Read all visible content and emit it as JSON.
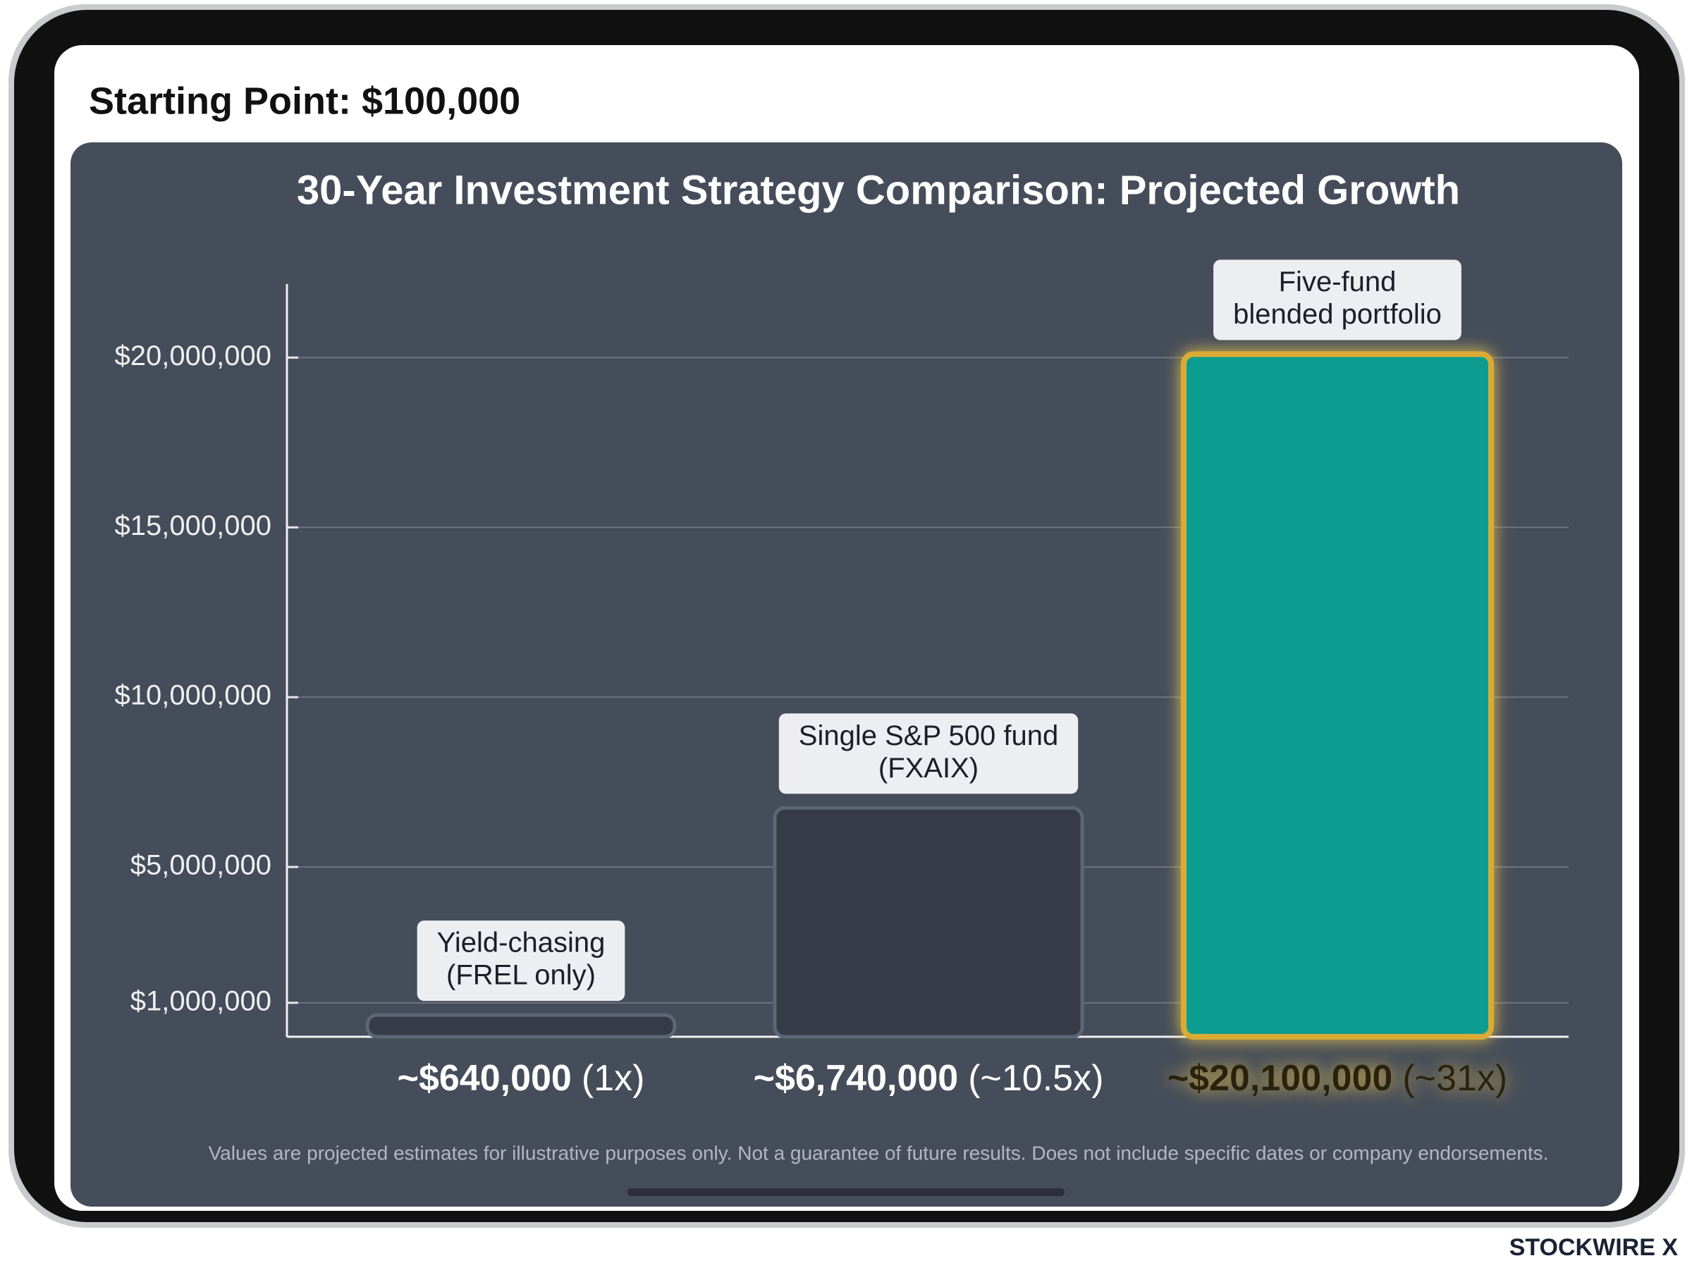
{
  "header": {
    "title": "Starting Point: $100,000"
  },
  "chart_data": {
    "type": "bar",
    "title": "30-Year Investment Strategy Comparison: Projected Growth",
    "categories": [
      [
        "Yield-chasing",
        "(FREL only)"
      ],
      [
        "Single S&P 500 fund",
        "(FXAIX)"
      ],
      [
        "Five-fund",
        "blended portfolio"
      ]
    ],
    "values": [
      640000,
      6740000,
      20100000
    ],
    "value_labels": [
      "~$640,000",
      "~$6,740,000",
      "~$20,100,000"
    ],
    "multipliers": [
      "(1x)",
      "(~10.5x)",
      "(~31x)"
    ],
    "colors": [
      "#353c48",
      "#353c48",
      "#0b9c90"
    ],
    "edge_colors": [
      "#5d6675",
      "#5d6675",
      "#d9ab35"
    ],
    "glow": [
      false,
      false,
      true
    ],
    "ylim": [
      0,
      22000000
    ],
    "yticks": [
      {
        "value": 1000000,
        "label": "$1,000,000"
      },
      {
        "value": 5000000,
        "label": "$5,000,000"
      },
      {
        "value": 10000000,
        "label": "$10,000,000"
      },
      {
        "value": 15000000,
        "label": "$15,000,000"
      },
      {
        "value": 20000000,
        "label": "$20,000,000"
      }
    ],
    "grid": true,
    "footnote": "Values are projected estimates for illustrative purposes only. Not a guarantee of future results. Does not include specific dates or company endorsements."
  },
  "brand": "STOCKWIRE X"
}
